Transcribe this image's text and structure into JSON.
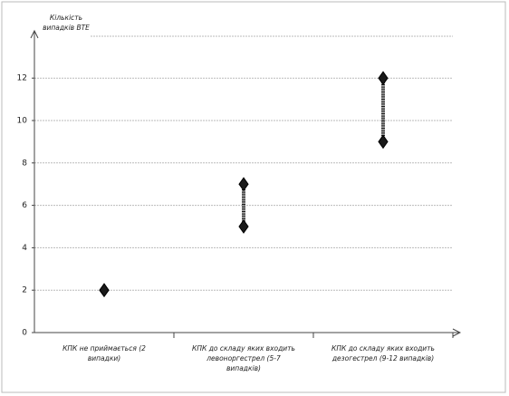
{
  "chart_data": {
    "type": "range",
    "y_label": "Кількість випадків ВТЕ",
    "categories": [
      "КПК не приймається (2 випадки)",
      "КПК до складу яких входить левоноргестрел (5-7 випадків)",
      "КПК до складу яких входить дезогестрел (9-12 випадків)"
    ],
    "series": [
      {
        "name": "min",
        "color": "#1a1a1a",
        "values": [
          2,
          5,
          9
        ]
      },
      {
        "name": "max",
        "color": "#1a1a1a",
        "values": [
          2,
          7,
          12
        ]
      }
    ],
    "ylim": [
      0,
      14
    ],
    "yticks": [
      0,
      2,
      4,
      6,
      8,
      10,
      12
    ],
    "grid": true
  }
}
